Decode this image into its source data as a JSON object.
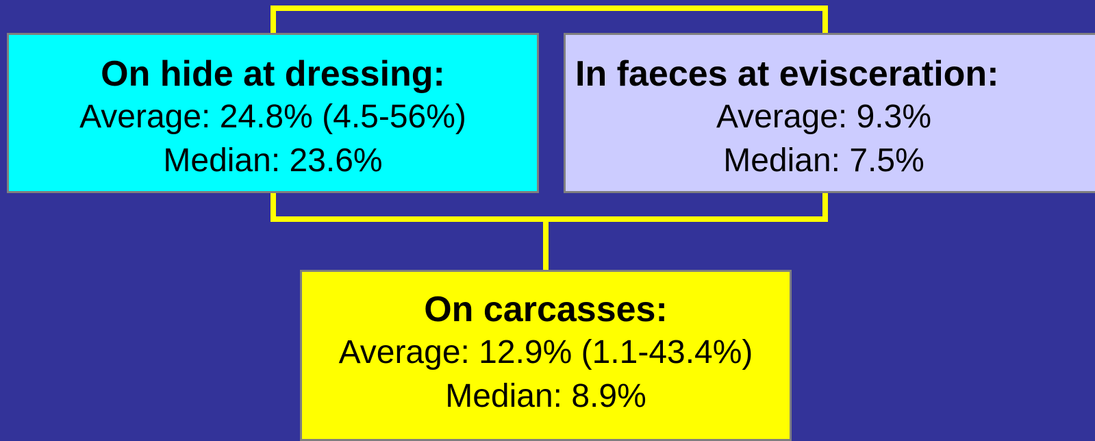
{
  "nodes": [
    {
      "title": "On hide at dressing:",
      "lines": [
        "Average: 24.8% (4.5-56%)",
        "Median: 23.6%"
      ]
    },
    {
      "title": "In faeces at evisceration:",
      "lines": [
        "Average: 9.3%",
        "Median: 7.5%"
      ]
    },
    {
      "title": "On carcasses:",
      "lines": [
        "Average: 12.9% (1.1-43.4%)",
        "Median: 8.9%"
      ]
    }
  ]
}
